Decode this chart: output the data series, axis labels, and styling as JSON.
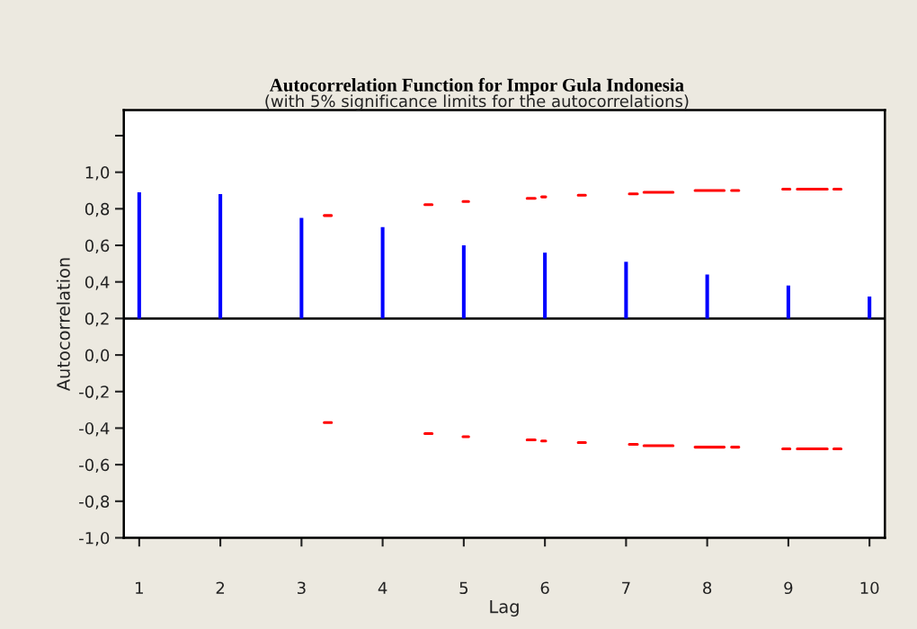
{
  "chart_data": {
    "type": "bar",
    "title": "Autocorrelation Function for Impor Gula Indonesia",
    "subtitle": "(with 5% significance limits for the autocorrelations)",
    "xlabel": "Lag",
    "ylabel": "Autocorrelation",
    "x": [
      1,
      2,
      3,
      4,
      5,
      6,
      7,
      8,
      9,
      10
    ],
    "series": [
      {
        "color": "#0000ff",
        "base": [
          0.2,
          0.2,
          0.2,
          0.2,
          0.2,
          0.2,
          0.2,
          0.2,
          0.2,
          0.2
        ],
        "values": [
          0.69,
          0.68,
          0.55,
          0.5,
          0.4,
          0.36,
          0.31,
          0.24,
          0.18,
          0.12
        ]
      },
      {
        "type": "line",
        "color": "#ff0000",
        "x": [
          3.28,
          3.37,
          3.9,
          4.52,
          4.61,
          4.8,
          4.99,
          5.06,
          5.4,
          5.78,
          5.88,
          5.92,
          5.96,
          6.01,
          6.2,
          6.41,
          6.5,
          6.8,
          7.04,
          7.14,
          7.18,
          7.22,
          7.58,
          7.7,
          7.85,
          8.21,
          8.25,
          8.3,
          8.39,
          8.6,
          8.93,
          9.02,
          9.07,
          9.11,
          9.48,
          9.52,
          9.56,
          9.65
        ],
        "values": [
          0.763,
          0.763,
          null,
          0.823,
          0.823,
          null,
          0.84,
          0.84,
          null,
          0.857,
          0.857,
          null,
          0.865,
          0.865,
          null,
          0.874,
          0.874,
          null,
          0.882,
          0.882,
          null,
          0.89,
          0.89,
          null,
          0.9,
          0.9,
          null,
          0.9,
          0.9,
          null,
          0.907,
          0.907,
          null,
          0.907,
          0.907,
          null,
          0.907,
          0.907
        ]
      },
      {
        "type": "line",
        "color": "#ff0000",
        "x": [
          3.28,
          3.37,
          3.9,
          4.52,
          4.61,
          4.8,
          4.99,
          5.06,
          5.4,
          5.78,
          5.88,
          5.92,
          5.96,
          6.01,
          6.2,
          6.41,
          6.5,
          6.8,
          7.04,
          7.14,
          7.18,
          7.22,
          7.58,
          7.7,
          7.85,
          8.21,
          8.25,
          8.3,
          8.39,
          8.6,
          8.93,
          9.02,
          9.07,
          9.11,
          9.48,
          9.52,
          9.56,
          9.65
        ],
        "values": [
          -0.37,
          -0.37,
          null,
          -0.43,
          -0.43,
          null,
          -0.447,
          -0.447,
          null,
          -0.464,
          -0.464,
          null,
          -0.47,
          -0.47,
          null,
          -0.479,
          -0.479,
          null,
          -0.489,
          -0.489,
          null,
          -0.496,
          -0.496,
          null,
          -0.504,
          -0.504,
          null,
          -0.504,
          -0.504,
          null,
          -0.513,
          -0.513,
          null,
          -0.513,
          -0.513,
          null,
          -0.513,
          -0.513
        ]
      }
    ],
    "ref_lines": [
      {
        "axis": "y",
        "value": 0.2,
        "color": "#000000"
      }
    ],
    "xlim": [
      0.81,
      10.19
    ],
    "xticks": [
      1,
      2,
      3,
      4,
      5,
      6,
      7,
      8,
      9,
      10
    ],
    "ylim": [
      -1.0,
      1.34
    ],
    "yticks": [
      {
        "value": -1.0,
        "label": "-1,0"
      },
      {
        "value": -0.8,
        "label": "-0,8"
      },
      {
        "value": -0.6,
        "label": "-0,6"
      },
      {
        "value": -0.4,
        "label": "-0,4"
      },
      {
        "value": -0.2,
        "label": "-0,2"
      },
      {
        "value": 0.0,
        "label": "0,0"
      },
      {
        "value": 0.2,
        "label": "0,2"
      },
      {
        "value": 0.4,
        "label": "0,4"
      },
      {
        "value": 0.6,
        "label": "0,6"
      },
      {
        "value": 0.8,
        "label": "0,8"
      },
      {
        "value": 1.0,
        "label": "1,0"
      },
      {
        "value": 1.2,
        "label": null
      }
    ],
    "grid": false,
    "legend": false,
    "line_style": "solid",
    "marker": "none"
  }
}
